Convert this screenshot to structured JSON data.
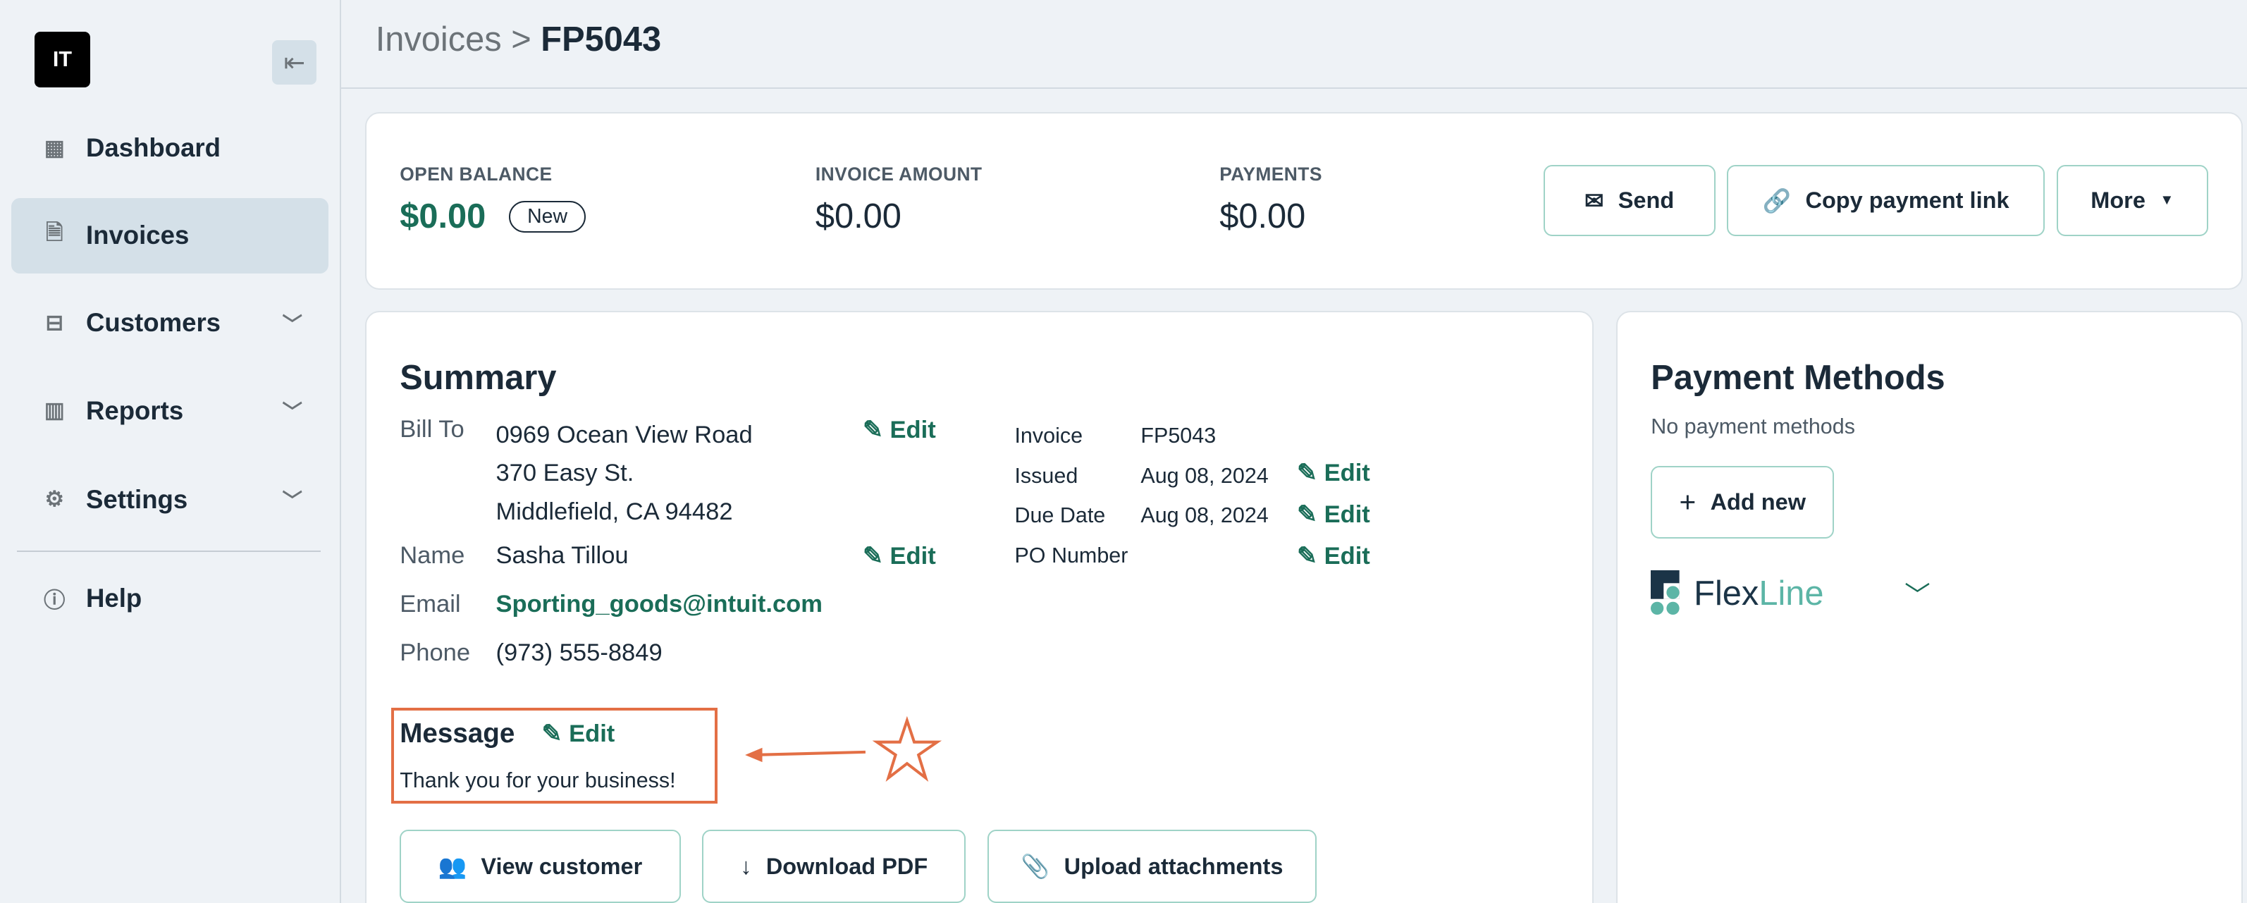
{
  "sidebar": {
    "logo": "IT",
    "items": [
      {
        "label": "Dashboard",
        "icon": "grid-icon"
      },
      {
        "label": "Invoices",
        "icon": "document-icon",
        "active": true
      },
      {
        "label": "Customers",
        "icon": "briefcase-icon"
      },
      {
        "label": "Reports",
        "icon": "chart-icon"
      },
      {
        "label": "Settings",
        "icon": "gear-icon"
      },
      {
        "label": "Help",
        "icon": "help-icon"
      }
    ]
  },
  "breadcrumb": {
    "parent": "Invoices",
    "current": "FP5043"
  },
  "balance": {
    "open_label": "OPEN BALANCE",
    "open_value": "$0.00",
    "badge": "New",
    "invoice_label": "INVOICE AMOUNT",
    "invoice_value": "$0.00",
    "payments_label": "PAYMENTS",
    "payments_value": "$0.00"
  },
  "actions": {
    "send": "Send",
    "copy": "Copy payment link",
    "more": "More"
  },
  "summary": {
    "title": "Summary",
    "bill_to_label": "Bill To",
    "bill_to": [
      "0969 Ocean View Road",
      "370 Easy St.",
      "Middlefield, CA 94482"
    ],
    "name_label": "Name",
    "name": "Sasha Tillou",
    "email_label": "Email",
    "email": "Sporting_goods@intuit.com",
    "phone_label": "Phone",
    "phone": "(973) 555-8849",
    "edit": "Edit",
    "invoice_label": "Invoice",
    "invoice": "FP5043",
    "issued_label": "Issued",
    "issued": "Aug 08, 2024",
    "due_label": "Due Date",
    "due": "Aug 08, 2024",
    "po_label": "PO Number",
    "message_title": "Message",
    "message": "Thank you for your business!"
  },
  "buttons": {
    "view": "View customer",
    "download": "Download PDF",
    "upload": "Upload attachments"
  },
  "payment": {
    "title": "Payment Methods",
    "empty": "No payment methods",
    "add": "Add new",
    "provider_a": "Flex",
    "provider_b": "Line"
  },
  "colors": {
    "accent": "#1a6d58",
    "annotation": "#e36f45"
  }
}
